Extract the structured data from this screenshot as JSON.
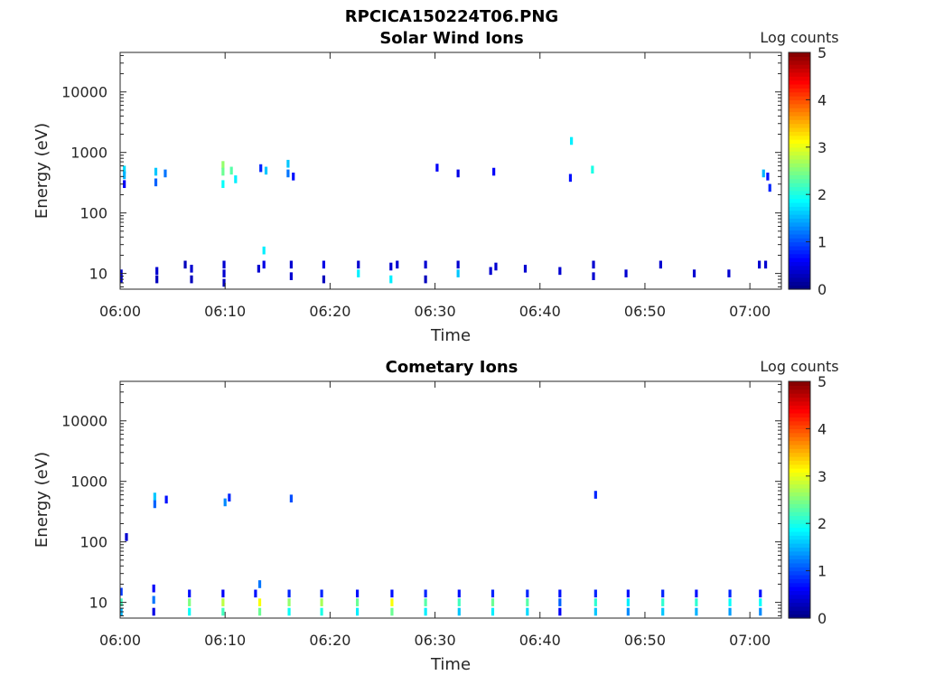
{
  "figure": {
    "file_title": "RPCICA150224T06.PNG"
  },
  "chart_data": [
    {
      "type": "heatmap",
      "title": "Solar Wind Ions",
      "xlabel": "Time",
      "ylabel": "Energy (eV)",
      "x_ticks": [
        "06:00",
        "06:10",
        "06:20",
        "06:30",
        "06:40",
        "06:50",
        "07:00"
      ],
      "xlim_minutes": [
        0,
        63
      ],
      "y_scale": "log",
      "y_ticks": [
        "10",
        "100",
        "1000",
        "10000"
      ],
      "ylim_eV": [
        5.5,
        45000
      ],
      "colorbar": {
        "label": "Log counts",
        "ticks": [
          "0",
          "1",
          "2",
          "3",
          "4",
          "5"
        ],
        "range": [
          0,
          5
        ],
        "colormap": "jet"
      },
      "cells_note": "[minute, energy eV, log counts]",
      "cells": [
        [
          0.1,
          10,
          0.4
        ],
        [
          0.1,
          8,
          0.4
        ],
        [
          3.5,
          11,
          0.4
        ],
        [
          3.5,
          8,
          0.3
        ],
        [
          6.2,
          14,
          0.3
        ],
        [
          6.8,
          12,
          0.4
        ],
        [
          6.8,
          8,
          0.3
        ],
        [
          9.9,
          14,
          0.4
        ],
        [
          9.9,
          10,
          0.4
        ],
        [
          9.9,
          7,
          0.3
        ],
        [
          13.2,
          12,
          0.4
        ],
        [
          13.7,
          24,
          1.8
        ],
        [
          13.7,
          14,
          0.5
        ],
        [
          16.3,
          14,
          0.4
        ],
        [
          16.3,
          9,
          0.4
        ],
        [
          19.4,
          14,
          0.5
        ],
        [
          19.4,
          8,
          0.3
        ],
        [
          22.7,
          14,
          0.4
        ],
        [
          22.7,
          10,
          1.8
        ],
        [
          25.8,
          13,
          0.4
        ],
        [
          25.8,
          8,
          1.8
        ],
        [
          26.4,
          14,
          0.4
        ],
        [
          29.1,
          14,
          0.4
        ],
        [
          29.1,
          8,
          0.3
        ],
        [
          32.2,
          14,
          0.4
        ],
        [
          32.2,
          10,
          1.6
        ],
        [
          35.3,
          11,
          0.4
        ],
        [
          35.8,
          13,
          0.4
        ],
        [
          38.6,
          12,
          0.4
        ],
        [
          41.9,
          11,
          0.4
        ],
        [
          45.1,
          14,
          0.4
        ],
        [
          45.1,
          9,
          0.4
        ],
        [
          48.2,
          10,
          0.4
        ],
        [
          51.5,
          14,
          0.4
        ],
        [
          54.7,
          10,
          0.4
        ],
        [
          58.0,
          10,
          0.4
        ],
        [
          60.9,
          14,
          0.4
        ],
        [
          61.5,
          14,
          0.4
        ],
        [
          0.4,
          520,
          1.7
        ],
        [
          0.4,
          420,
          1.5
        ],
        [
          0.4,
          300,
          0.6
        ],
        [
          3.4,
          480,
          1.6
        ],
        [
          3.4,
          320,
          1.1
        ],
        [
          4.3,
          450,
          1.2
        ],
        [
          9.8,
          620,
          2.6
        ],
        [
          9.8,
          480,
          2.4
        ],
        [
          9.8,
          300,
          1.9
        ],
        [
          10.6,
          500,
          2.3
        ],
        [
          11.0,
          360,
          1.8
        ],
        [
          13.4,
          550,
          0.8
        ],
        [
          13.9,
          500,
          1.6
        ],
        [
          16.0,
          650,
          1.6
        ],
        [
          16.0,
          450,
          1.2
        ],
        [
          16.5,
          400,
          0.7
        ],
        [
          30.2,
          560,
          0.6
        ],
        [
          32.2,
          450,
          0.5
        ],
        [
          35.6,
          480,
          0.6
        ],
        [
          45.0,
          520,
          2.0
        ],
        [
          43.0,
          1550,
          1.8
        ],
        [
          61.3,
          450,
          1.5
        ],
        [
          61.7,
          400,
          0.7
        ],
        [
          61.9,
          260,
          0.8
        ],
        [
          42.9,
          380,
          0.7
        ]
      ]
    },
    {
      "type": "heatmap",
      "title": "Cometary Ions",
      "xlabel": "Time",
      "ylabel": "Energy (eV)",
      "x_ticks": [
        "06:00",
        "06:10",
        "06:20",
        "06:30",
        "06:40",
        "06:50",
        "07:00"
      ],
      "xlim_minutes": [
        0,
        63
      ],
      "y_scale": "log",
      "y_ticks": [
        "10",
        "100",
        "1000",
        "10000"
      ],
      "ylim_eV": [
        5.5,
        45000
      ],
      "colorbar": {
        "label": "Log counts",
        "ticks": [
          "0",
          "1",
          "2",
          "3",
          "4",
          "5"
        ],
        "range": [
          0,
          5
        ],
        "colormap": "jet"
      },
      "cells_note": "[minute, energy eV, log counts]",
      "cells": [
        [
          0.1,
          15,
          0.9
        ],
        [
          0.1,
          10,
          2.2
        ],
        [
          0.1,
          7,
          1.5
        ],
        [
          3.2,
          17,
          0.6
        ],
        [
          3.2,
          11,
          1.2
        ],
        [
          3.2,
          7,
          0.5
        ],
        [
          6.6,
          14,
          0.7
        ],
        [
          6.6,
          10,
          2.5
        ],
        [
          6.6,
          7,
          1.9
        ],
        [
          9.8,
          14,
          0.6
        ],
        [
          9.8,
          10,
          2.8
        ],
        [
          9.8,
          7,
          2.2
        ],
        [
          12.9,
          14,
          0.7
        ],
        [
          13.3,
          20,
          1.2
        ],
        [
          13.3,
          10,
          3.1
        ],
        [
          13.3,
          7,
          2.4
        ],
        [
          16.1,
          14,
          0.8
        ],
        [
          16.1,
          10,
          2.6
        ],
        [
          16.1,
          7,
          1.9
        ],
        [
          19.2,
          14,
          0.8
        ],
        [
          19.2,
          10,
          2.7
        ],
        [
          19.2,
          7,
          2.0
        ],
        [
          22.6,
          14,
          0.7
        ],
        [
          22.6,
          10,
          2.4
        ],
        [
          22.6,
          7,
          1.8
        ],
        [
          25.9,
          14,
          0.7
        ],
        [
          25.9,
          10,
          3.1
        ],
        [
          25.9,
          7,
          2.4
        ],
        [
          29.1,
          14,
          0.8
        ],
        [
          29.1,
          10,
          2.3
        ],
        [
          29.1,
          7,
          1.8
        ],
        [
          32.3,
          14,
          0.7
        ],
        [
          32.3,
          10,
          2.2
        ],
        [
          32.3,
          7,
          1.6
        ],
        [
          35.5,
          14,
          0.8
        ],
        [
          35.5,
          10,
          2.4
        ],
        [
          35.5,
          7,
          1.8
        ],
        [
          38.8,
          14,
          0.8
        ],
        [
          38.8,
          10,
          2.3
        ],
        [
          38.8,
          7,
          1.7
        ],
        [
          41.9,
          14,
          0.7
        ],
        [
          41.9,
          10,
          1.1
        ],
        [
          41.9,
          7,
          0.6
        ],
        [
          45.3,
          14,
          0.8
        ],
        [
          45.3,
          10,
          2.1
        ],
        [
          45.3,
          7,
          1.6
        ],
        [
          48.4,
          14,
          0.7
        ],
        [
          48.4,
          10,
          1.8
        ],
        [
          48.4,
          7,
          1.3
        ],
        [
          51.7,
          14,
          0.8
        ],
        [
          51.7,
          10,
          2.1
        ],
        [
          51.7,
          7,
          1.6
        ],
        [
          54.9,
          14,
          0.7
        ],
        [
          54.9,
          10,
          2.1
        ],
        [
          54.9,
          7,
          1.5
        ],
        [
          58.1,
          14,
          0.8
        ],
        [
          58.1,
          10,
          1.9
        ],
        [
          58.1,
          7,
          1.4
        ],
        [
          61.0,
          14,
          0.7
        ],
        [
          61.0,
          10,
          1.9
        ],
        [
          61.0,
          7,
          1.3
        ],
        [
          3.3,
          560,
          1.6
        ],
        [
          3.3,
          420,
          1.1
        ],
        [
          4.4,
          500,
          0.7
        ],
        [
          10.0,
          450,
          1.3
        ],
        [
          10.4,
          540,
          0.8
        ],
        [
          16.3,
          520,
          1.0
        ],
        [
          45.3,
          600,
          0.8
        ],
        [
          0.6,
          120,
          0.4
        ]
      ]
    }
  ]
}
